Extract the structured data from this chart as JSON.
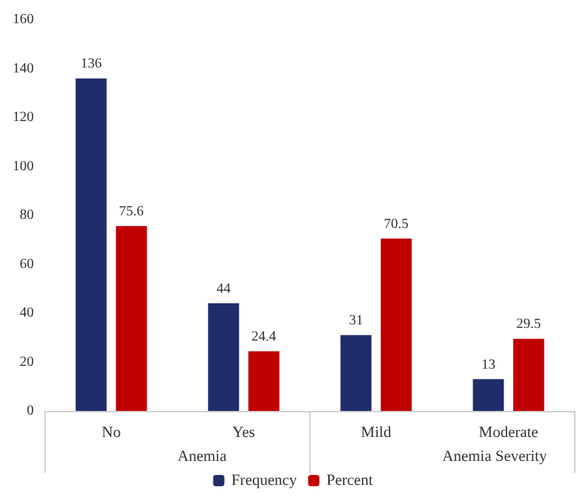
{
  "chart_data": {
    "type": "bar",
    "categories": [
      "No",
      "Yes",
      "Mild",
      "Moderate"
    ],
    "series": [
      {
        "name": "Frequency",
        "color": "#1f2d6b",
        "values": [
          136,
          44,
          31,
          13
        ]
      },
      {
        "name": "Percent",
        "color": "#c00000",
        "values": [
          75.6,
          24.4,
          70.5,
          29.5
        ]
      }
    ],
    "ylim": [
      0,
      160
    ],
    "yticks": [
      0,
      20,
      40,
      60,
      80,
      100,
      120,
      140,
      160
    ],
    "grid": false,
    "legend": "bottom",
    "data_labels": true,
    "annotations": [
      "Anemia",
      "Anemia Severity"
    ]
  }
}
